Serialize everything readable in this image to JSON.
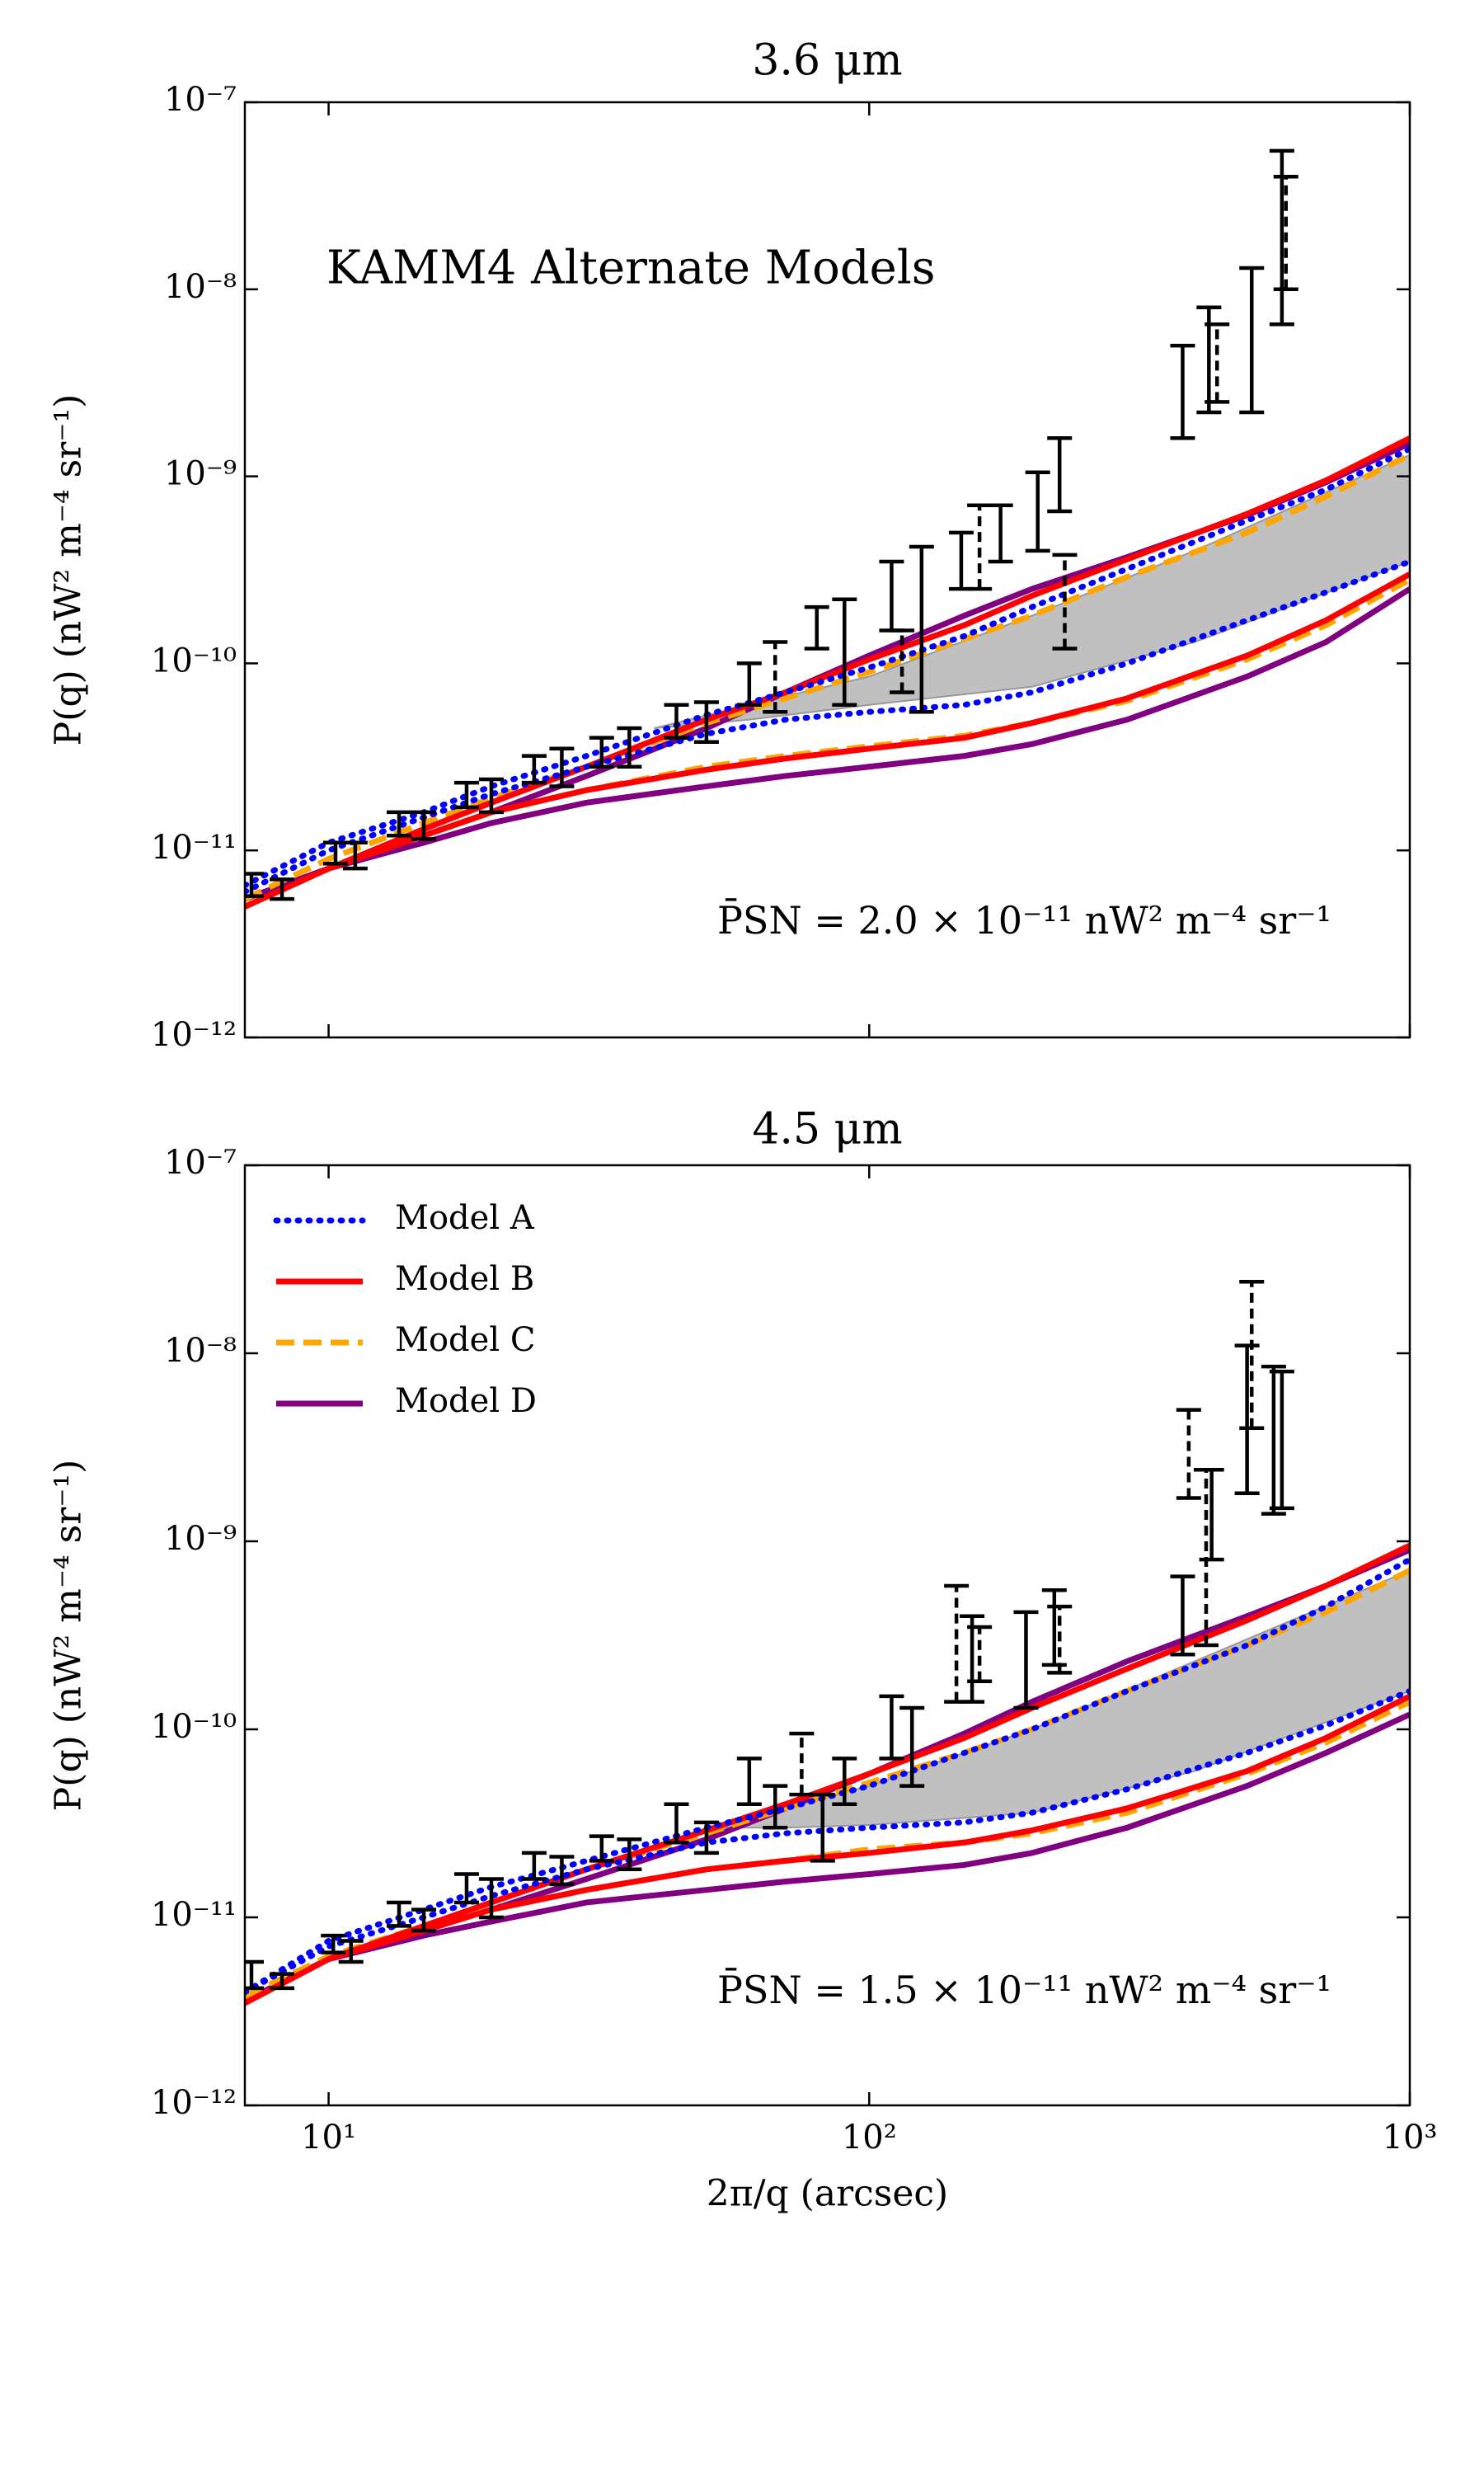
{
  "chart_data": [
    {
      "type": "line",
      "title": "3.6 μm",
      "ylabel": "P(q) (nW² m⁻⁴ sr⁻¹)",
      "annotations": [
        "KAMM4 Alternate Models",
        "P̄SN = 2.0 × 10⁻¹¹ nW² m⁻⁴ sr⁻¹"
      ],
      "xscale": "log",
      "yscale": "log",
      "xlim": [
        7,
        1000
      ],
      "ylim": [
        1e-12,
        1e-07
      ],
      "xticks": [
        10,
        100,
        1000
      ],
      "show_xtick_labels": false,
      "yticks": [
        {
          "value": 1e-12,
          "label": "10⁻¹²"
        },
        {
          "value": 1e-11,
          "label": "10⁻¹¹"
        },
        {
          "value": 1e-10,
          "label": "10⁻¹⁰"
        },
        {
          "value": 1e-09,
          "label": "10⁻⁹"
        },
        {
          "value": 1e-08,
          "label": "10⁻⁸"
        },
        {
          "value": 1e-07,
          "label": "10⁻⁷"
        }
      ],
      "x": [
        7,
        10,
        15,
        20,
        30,
        50,
        70,
        100,
        150,
        200,
        300,
        500,
        700,
        1000
      ],
      "series": [
        {
          "color": "#0000ff",
          "style": "dotted",
          "values": [
            6.5e-12,
            1.1e-11,
            1.6e-11,
            2.2e-11,
            3.2e-11,
            5.3e-11,
            7e-11,
            9.5e-11,
            1.4e-10,
            2e-10,
            3.2e-10,
            5.8e-10,
            8.5e-10,
            1.4e-09
          ],
          "values_lower": [
            6e-12,
            1e-11,
            1.5e-11,
            2e-11,
            2.8e-11,
            4.2e-11,
            5e-11,
            5.5e-11,
            6e-11,
            7e-11,
            1e-10,
            1.7e-10,
            2.4e-10,
            3.5e-10
          ]
        },
        {
          "color": "#ff0000",
          "style": "solid",
          "values": [
            5e-12,
            8e-12,
            1.3e-11,
            1.8e-11,
            2.8e-11,
            5e-11,
            7e-11,
            1.05e-10,
            1.6e-10,
            2.3e-10,
            3.6e-10,
            6.3e-10,
            9.5e-10,
            1.6e-09
          ],
          "values_lower": [
            5e-12,
            8e-12,
            1.2e-11,
            1.6e-11,
            2.1e-11,
            2.7e-11,
            3.1e-11,
            3.5e-11,
            4e-11,
            4.8e-11,
            6.5e-11,
            1.1e-10,
            1.7e-10,
            3e-10
          ]
        },
        {
          "color": "#ffa500",
          "style": "dashed",
          "values": [
            5.5e-12,
            9e-12,
            1.4e-11,
            1.9e-11,
            2.8e-11,
            4.8e-11,
            6.5e-11,
            9e-11,
            1.35e-10,
            1.8e-10,
            2.9e-10,
            5e-10,
            7.8e-10,
            1.3e-09
          ],
          "values_lower": [
            5e-12,
            8e-12,
            1.2e-11,
            1.6e-11,
            2.1e-11,
            2.8e-11,
            3.2e-11,
            3.6e-11,
            4.1e-11,
            4.8e-11,
            6.3e-11,
            1.05e-10,
            1.6e-10,
            2.8e-10
          ]
        },
        {
          "color": "#800080",
          "style": "solid",
          "values": [
            5.5e-12,
            8e-12,
            1.2e-11,
            1.6e-11,
            2.5e-11,
            4.5e-11,
            7e-11,
            1.1e-10,
            1.8e-10,
            2.5e-10,
            3.7e-10,
            6.2e-10,
            9.3e-10,
            1.5e-09
          ],
          "values_lower": [
            5.5e-12,
            8e-12,
            1.1e-11,
            1.4e-11,
            1.8e-11,
            2.2e-11,
            2.5e-11,
            2.8e-11,
            3.2e-11,
            3.7e-11,
            5e-11,
            8.5e-11,
            1.3e-10,
            2.5e-10
          ]
        }
      ],
      "band": {
        "color": "#c0c0c0",
        "x": [
          40,
          60,
          100,
          200,
          400,
          1000
        ],
        "upper": [
          4.5e-11,
          6e-11,
          8.5e-11,
          1.8e-10,
          4e-10,
          1.3e-09
        ],
        "lower": [
          4.5e-11,
          5e-11,
          6e-11,
          7.5e-11,
          1.3e-10,
          3.5e-10
        ]
      },
      "errorbars": {
        "color": "#000000",
        "x": [
          7.2,
          8.2,
          10.3,
          11.2,
          13.5,
          15,
          18,
          20,
          24,
          27,
          32,
          36,
          44,
          50,
          60,
          67,
          80,
          90,
          110,
          115,
          125,
          148,
          160,
          175,
          205,
          225,
          230,
          380,
          425,
          440,
          510,
          580,
          590
        ],
        "low": [
          5.7e-12,
          5.5e-12,
          8.5e-12,
          8e-12,
          1.2e-11,
          1.15e-11,
          1.7e-11,
          1.6e-11,
          2.3e-11,
          2.2e-11,
          2.8e-11,
          2.8e-11,
          4e-11,
          3.8e-11,
          6e-11,
          5.5e-11,
          1.2e-10,
          6e-11,
          1.5e-10,
          7e-11,
          5.5e-11,
          2.5e-10,
          2.5e-10,
          3.5e-10,
          4e-10,
          6.5e-10,
          1.2e-10,
          1.6e-09,
          2.2e-09,
          2.5e-09,
          2.2e-09,
          6.5e-09,
          1e-08
        ],
        "high": [
          7.5e-12,
          7e-12,
          1.1e-11,
          1.1e-11,
          1.6e-11,
          1.6e-11,
          2.3e-11,
          2.4e-11,
          3.2e-11,
          3.5e-11,
          4e-11,
          4.5e-11,
          6e-11,
          6.2e-11,
          1e-10,
          1.3e-10,
          2e-10,
          2.2e-10,
          3.5e-10,
          1.5e-10,
          4.2e-10,
          5e-10,
          7e-10,
          7e-10,
          1.05e-09,
          1.6e-09,
          3.8e-10,
          5e-09,
          8e-09,
          6.5e-09,
          1.3e-08,
          5.5e-08,
          4e-08
        ],
        "dashed": [
          false,
          false,
          false,
          false,
          false,
          false,
          false,
          false,
          false,
          false,
          false,
          false,
          false,
          false,
          false,
          true,
          false,
          false,
          false,
          true,
          false,
          false,
          true,
          false,
          false,
          false,
          true,
          false,
          false,
          true,
          false,
          false,
          true
        ]
      }
    },
    {
      "type": "line",
      "title": "4.5 μm",
      "ylabel": "P(q) (nW² m⁻⁴ sr⁻¹)",
      "xlabel": "2π/q (arcsec)",
      "annotations": [
        "P̄SN = 1.5 × 10⁻¹¹ nW² m⁻⁴ sr⁻¹"
      ],
      "xscale": "log",
      "yscale": "log",
      "xlim": [
        7,
        1000
      ],
      "ylim": [
        1e-12,
        1e-07
      ],
      "xticks": [
        {
          "value": 10,
          "label": "10¹"
        },
        {
          "value": 100,
          "label": "10²"
        },
        {
          "value": 1000,
          "label": "10³"
        }
      ],
      "show_xtick_labels": true,
      "yticks": [
        {
          "value": 1e-12,
          "label": "10⁻¹²"
        },
        {
          "value": 1e-11,
          "label": "10⁻¹¹"
        },
        {
          "value": 1e-10,
          "label": "10⁻¹⁰"
        },
        {
          "value": 1e-09,
          "label": "10⁻⁹"
        },
        {
          "value": 1e-08,
          "label": "10⁻⁸"
        },
        {
          "value": 1e-07,
          "label": "10⁻⁷"
        }
      ],
      "legend": "upper left",
      "x": [
        7,
        10,
        15,
        20,
        30,
        50,
        70,
        100,
        150,
        200,
        300,
        500,
        700,
        1000
      ],
      "series": [
        {
          "name": "Model A",
          "color": "#0000ff",
          "style": "dotted",
          "values": [
            4e-12,
            7.5e-12,
            1.1e-11,
            1.45e-11,
            2e-11,
            3e-11,
            3.8e-11,
            5e-11,
            7.5e-11,
            1e-10,
            1.6e-10,
            2.8e-10,
            4.5e-10,
            8e-10
          ],
          "values_lower": [
            4e-12,
            7e-12,
            1e-11,
            1.3e-11,
            1.8e-11,
            2.5e-11,
            2.8e-11,
            3e-11,
            3.2e-11,
            3.6e-11,
            4.8e-11,
            7.5e-11,
            1.05e-10,
            1.6e-10
          ]
        },
        {
          "name": "Model B",
          "color": "#ff0000",
          "style": "solid",
          "values": [
            3.5e-12,
            6e-12,
            9e-12,
            1.2e-11,
            1.8e-11,
            2.9e-11,
            4e-11,
            5.8e-11,
            9e-11,
            1.3e-10,
            2.1e-10,
            3.8e-10,
            5.8e-10,
            9.5e-10
          ],
          "values_lower": [
            3.5e-12,
            6e-12,
            8.5e-12,
            1.1e-11,
            1.4e-11,
            1.8e-11,
            2e-11,
            2.2e-11,
            2.5e-11,
            2.9e-11,
            3.8e-11,
            6e-11,
            9e-11,
            1.5e-10
          ]
        },
        {
          "name": "Model C",
          "color": "#ffa500",
          "style": "dashed",
          "values": [
            3.8e-12,
            6.2e-12,
            9e-12,
            1.2e-11,
            1.8e-11,
            2.8e-11,
            3.8e-11,
            5.2e-11,
            7.5e-11,
            1e-10,
            1.6e-10,
            2.8e-10,
            4.2e-10,
            7e-10
          ],
          "values_lower": [
            3.8e-12,
            6.2e-12,
            8.5e-12,
            1.1e-11,
            1.4e-11,
            1.8e-11,
            2e-11,
            2.3e-11,
            2.5e-11,
            2.8e-11,
            3.6e-11,
            5.8e-11,
            8.5e-11,
            1.4e-10
          ]
        },
        {
          "name": "Model D",
          "color": "#800080",
          "style": "solid",
          "values": [
            3.6e-12,
            6e-12,
            8.5e-12,
            1.1e-11,
            1.6e-11,
            2.6e-11,
            3.8e-11,
            5.8e-11,
            9.5e-11,
            1.4e-10,
            2.3e-10,
            4e-10,
            5.8e-10,
            9e-10
          ],
          "values_lower": [
            3.6e-12,
            6e-12,
            8e-12,
            9.5e-12,
            1.2e-11,
            1.4e-11,
            1.55e-11,
            1.7e-11,
            1.9e-11,
            2.2e-11,
            3e-11,
            5e-11,
            7.5e-11,
            1.2e-10
          ]
        }
      ],
      "band": {
        "color": "#c0c0c0",
        "x": [
          50,
          70,
          100,
          200,
          400,
          1000
        ],
        "upper": [
          3e-11,
          3.8e-11,
          5e-11,
          1e-10,
          2.3e-10,
          7e-10
        ],
        "lower": [
          3e-11,
          3e-11,
          3.1e-11,
          3.6e-11,
          6e-11,
          1.6e-10
        ]
      },
      "errorbars": {
        "color": "#000000",
        "x": [
          7.2,
          8.2,
          10.2,
          11,
          13.5,
          15,
          18,
          20,
          24,
          27,
          32,
          36,
          44,
          50,
          60,
          67,
          75,
          82,
          90,
          110,
          120,
          145,
          155,
          160,
          195,
          220,
          225,
          380,
          390,
          420,
          430,
          500,
          510,
          560,
          580
        ],
        "low": [
          4.2e-12,
          4.2e-12,
          6.5e-12,
          5.8e-12,
          9e-12,
          8.5e-12,
          1.2e-11,
          1e-11,
          1.6e-11,
          1.5e-11,
          2e-11,
          1.8e-11,
          2.5e-11,
          2.2e-11,
          4e-11,
          3e-11,
          4.5e-11,
          2e-11,
          4e-11,
          7e-11,
          5e-11,
          1.4e-10,
          1.4e-10,
          1.8e-10,
          1.3e-10,
          2.2e-10,
          2e-10,
          2.5e-10,
          1.7e-09,
          2.8e-10,
          8e-10,
          1.8e-09,
          4e-09,
          1.4e-09,
          1.5e-09
        ],
        "high": [
          5.8e-12,
          5e-12,
          8e-12,
          7.5e-12,
          1.2e-11,
          1.1e-11,
          1.7e-11,
          1.6e-11,
          2.2e-11,
          2.1e-11,
          2.7e-11,
          2.6e-11,
          4e-11,
          3.2e-11,
          7e-11,
          5e-11,
          9.5e-11,
          4.5e-11,
          7e-11,
          1.5e-10,
          1.3e-10,
          5.8e-10,
          4e-10,
          3.5e-10,
          4.2e-10,
          5.5e-10,
          4.5e-10,
          6.5e-10,
          5e-09,
          2.4e-09,
          2.4e-09,
          1.1e-08,
          2.4e-08,
          8.5e-09,
          8e-09
        ],
        "dashed": [
          false,
          false,
          false,
          false,
          false,
          false,
          false,
          false,
          false,
          false,
          false,
          false,
          false,
          false,
          false,
          false,
          true,
          false,
          false,
          false,
          false,
          true,
          false,
          true,
          false,
          false,
          true,
          false,
          true,
          true,
          false,
          false,
          true,
          false,
          false
        ]
      }
    }
  ]
}
